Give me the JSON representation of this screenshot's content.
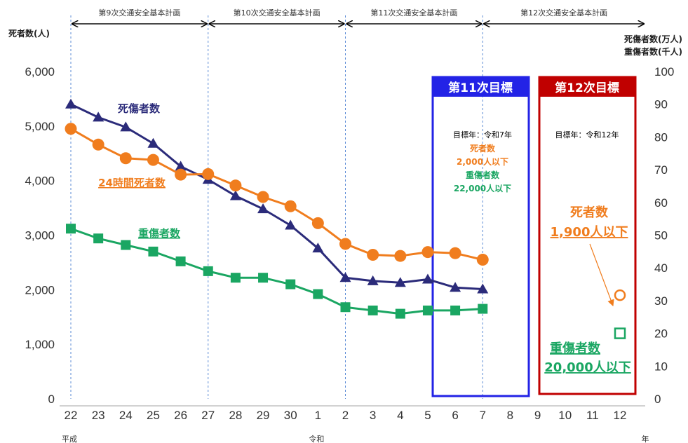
{
  "chart_data": {
    "type": "line",
    "x_labels": [
      "22",
      "23",
      "24",
      "25",
      "26",
      "27",
      "28",
      "29",
      "30",
      "1",
      "2",
      "3",
      "4",
      "5",
      "6",
      "7",
      "8",
      "9",
      "10",
      "11",
      "12"
    ],
    "x_unit": "年",
    "eras": [
      {
        "label": "平成",
        "at": "22"
      },
      {
        "label": "令和",
        "at": "1"
      }
    ],
    "left_axis": {
      "title": "死者数(人)",
      "min": 0,
      "max": 6000,
      "ticks": [
        "0",
        "1,000",
        "2,000",
        "3,000",
        "4,000",
        "5,000",
        "6,000"
      ]
    },
    "right_axis": {
      "title_line1": "死傷者数(万人)",
      "title_line2": "重傷者数(千人)",
      "min": 0,
      "max": 100,
      "ticks": [
        "0",
        "10",
        "20",
        "30",
        "40",
        "50",
        "60",
        "70",
        "80",
        "90",
        "100"
      ]
    },
    "plans": [
      {
        "label": "第9次交通安全基本計画",
        "from": "22",
        "to": "27",
        "color": "#333333"
      },
      {
        "label": "第10次交通安全基本計画",
        "from": "27",
        "to": "2",
        "color": "#333333"
      },
      {
        "label": "第11次交通安全基本計画",
        "from": "2",
        "to": "7",
        "color": "#333333"
      },
      {
        "label": "第12次交通安全基本計画",
        "from": "7",
        "to": "12",
        "color": "#e0202c"
      }
    ],
    "series": [
      {
        "name": "死傷者数",
        "axis": "right",
        "color": "#2b2b7a",
        "marker": "triangle",
        "x": [
          "22",
          "23",
          "24",
          "25",
          "26",
          "27",
          "28",
          "29",
          "30",
          "1",
          "2",
          "3",
          "4",
          "5",
          "6",
          "7"
        ],
        "values": [
          90,
          86,
          83,
          78,
          71,
          67,
          62,
          58,
          53,
          46,
          37,
          36,
          35.5,
          36.5,
          34,
          33.5
        ]
      },
      {
        "name": "24時間死者数",
        "axis": "left",
        "color": "#f07d1e",
        "marker": "circle",
        "x": [
          "22",
          "23",
          "24",
          "25",
          "26",
          "27",
          "28",
          "29",
          "30",
          "1",
          "2",
          "3",
          "4",
          "5",
          "6",
          "7"
        ],
        "values": [
          4950,
          4660,
          4410,
          4380,
          4110,
          4120,
          3910,
          3700,
          3530,
          3220,
          2840,
          2640,
          2620,
          2690,
          2670,
          2550
        ]
      },
      {
        "name": "重傷者数",
        "axis": "right",
        "color": "#1aa662",
        "marker": "square",
        "x": [
          "22",
          "23",
          "24",
          "25",
          "26",
          "27",
          "28",
          "29",
          "30",
          "1",
          "2",
          "3",
          "4",
          "5",
          "6",
          "7"
        ],
        "values": [
          52,
          49,
          47,
          45,
          42,
          39,
          37,
          37,
          35,
          32,
          28,
          27,
          26,
          27,
          27,
          27.5
        ]
      }
    ],
    "targets": [
      {
        "title": "第11次目標",
        "color": "#2323e6",
        "year_text": "目標年：令和7年",
        "lines": [
          {
            "text": "死者数",
            "color": "#f07d1e"
          },
          {
            "text": "2,000人以下",
            "color": "#f07d1e"
          },
          {
            "text": "重傷者数",
            "color": "#1aa662"
          },
          {
            "text": "22,000人以下",
            "color": "#1aa662"
          }
        ]
      },
      {
        "title": "第12次目標",
        "color": "#c00000",
        "year_text": "目標年：令和12年",
        "deaths_label": "死者数",
        "deaths_value": "1,900人以下",
        "serious_label": "重傷者数",
        "serious_value": "20,000人以下",
        "deaths_point": {
          "x": "12",
          "value": 1900
        },
        "serious_point": {
          "x": "12",
          "value": 20
        }
      }
    ]
  }
}
